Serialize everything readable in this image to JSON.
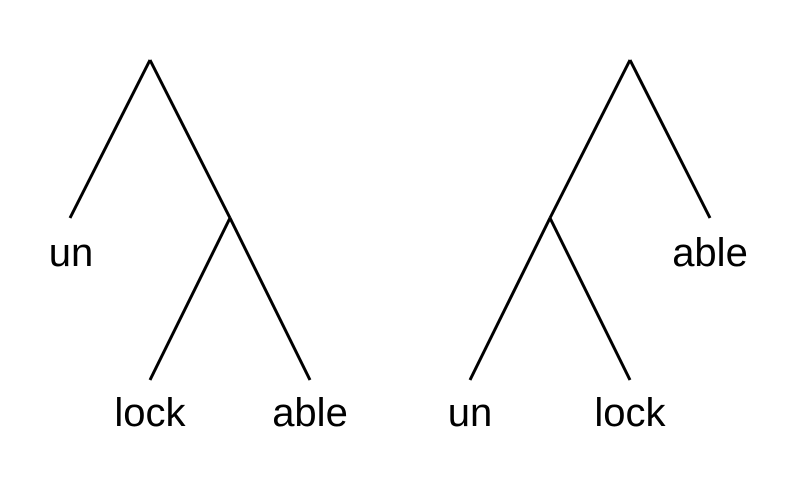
{
  "trees": [
    {
      "leaves": [
        {
          "label": "un"
        },
        {
          "label": "lock"
        },
        {
          "label": "able"
        }
      ]
    },
    {
      "leaves": [
        {
          "label": "un"
        },
        {
          "label": "lock"
        },
        {
          "label": "able"
        }
      ]
    }
  ]
}
